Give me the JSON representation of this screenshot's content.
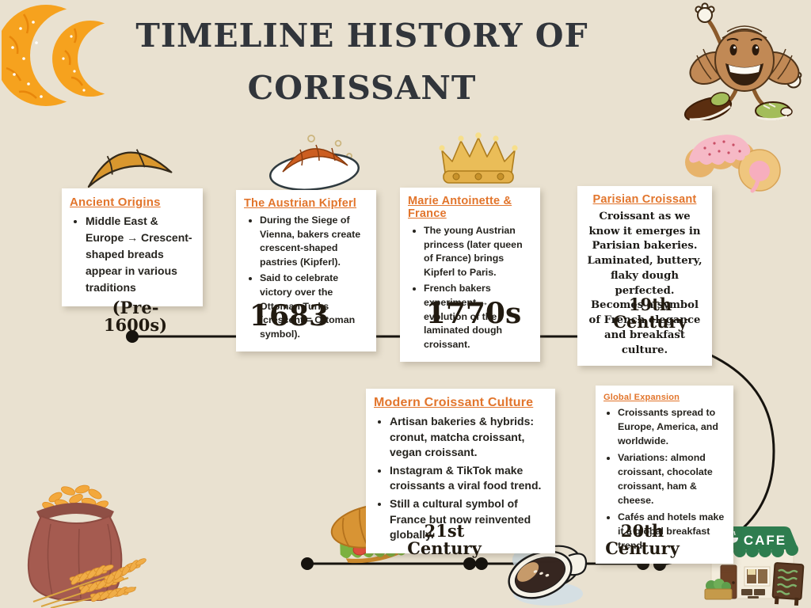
{
  "page": {
    "title_line1": "TIMELINE HISTORY OF",
    "title_line2": "CORISSANT"
  },
  "colors": {
    "background": "#e9e1d0",
    "accent_orange": "#e2752c",
    "timeline_ink": "#16130e",
    "title_ink": "#31353b",
    "card_background": "#ffffff"
  },
  "cards": {
    "ancient": {
      "title": "Ancient  Origins",
      "bullets": [
        "Middle East & Europe → Crescent-shaped breads appear in various traditions"
      ]
    },
    "kipferl": {
      "title": "The Austrian Kipferl",
      "bullets": [
        "During the Siege of Vienna, bakers create crescent-shaped pastries (Kipferl).",
        "Said to celebrate victory over the Ottoman Turks (crescent = Ottoman symbol)."
      ]
    },
    "marie": {
      "title": "Marie Antoinette & France",
      "bullets": [
        "The young Austrian princess (later queen of France) brings Kipferl to Paris.",
        "French bakers experiment → evolution of the laminated dough croissant."
      ]
    },
    "parisian": {
      "title": "Parisian Croissant",
      "lines": [
        "Croissant as we know it emerges in Parisian bakeries.",
        "Laminated, buttery, flaky dough perfected.",
        "Becomes a symbol of French elegance and breakfast culture."
      ]
    },
    "modern": {
      "title": "Modern Croissant Culture",
      "bullets": [
        "Artisan bakeries & hybrids: cronut, matcha croissant, vegan croissant.",
        "Instagram & TikTok make croissants a viral food trend.",
        "Still a cultural symbol of France but now reinvented globally."
      ]
    },
    "global": {
      "title": "Global Expansion",
      "bullets": [
        "Croissants spread to Europe, America, and worldwide.",
        "Variations: almond croissant, chocolate croissant, ham & cheese.",
        "Cafés and hotels make it a global breakfast trend."
      ]
    }
  },
  "timeline": {
    "dates": {
      "pre1600": [
        "(Pre-",
        "1600s)"
      ],
      "y1683": "1683",
      "y1770s": "1770s",
      "c19": [
        "19th",
        "Century"
      ],
      "c21": [
        "21st",
        "Century"
      ],
      "c20": [
        "20th",
        "Century"
      ]
    }
  },
  "decorations": {
    "cafe_sign_label": "CAFE",
    "items": [
      "croissant-crescents",
      "croissant-character",
      "croissant-outline",
      "croissant-on-plate",
      "crown",
      "pink-glazed-croissant",
      "wheat-sack",
      "croissant-sandwich",
      "coffee-cup",
      "cafe-storefront"
    ]
  }
}
